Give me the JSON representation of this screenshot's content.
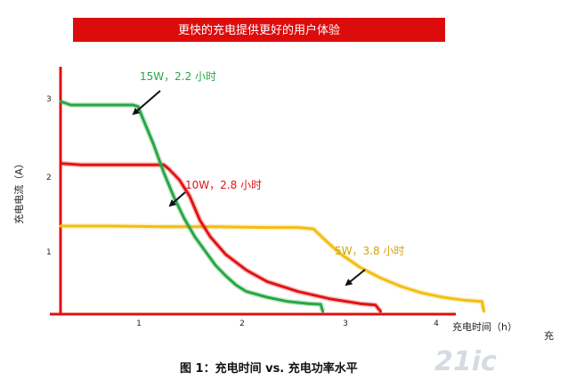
{
  "banner": {
    "text": "更快的充电提供更好的用户体验",
    "color": "#dd0c0c"
  },
  "caption": "图 1：充电时间 vs. 充电功率水平",
  "stray_label": "充",
  "watermark": "21ic",
  "chart_data": {
    "type": "line",
    "title": "",
    "xlabel": "充电时间（h）",
    "ylabel": "充电电流（A）",
    "xlim": [
      0,
      4.5
    ],
    "ylim": [
      0,
      3.2
    ],
    "xticks": [
      "1",
      "2",
      "3",
      "4"
    ],
    "yticks": [
      "1",
      "2",
      "3"
    ],
    "axis_color": "#e01010",
    "grid": false,
    "series": [
      {
        "name": "15W",
        "color": "#27a744",
        "x": [
          0.0,
          0.1,
          0.3,
          0.5,
          0.7,
          0.75,
          0.8,
          0.9,
          1.0,
          1.1,
          1.2,
          1.3,
          1.4,
          1.5,
          1.6,
          1.7,
          1.8,
          2.0,
          2.2,
          2.4,
          2.52,
          2.54
        ],
        "y": [
          2.95,
          2.9,
          2.9,
          2.9,
          2.9,
          2.88,
          2.7,
          2.35,
          1.95,
          1.6,
          1.3,
          1.05,
          0.85,
          0.65,
          0.5,
          0.37,
          0.28,
          0.2,
          0.14,
          0.11,
          0.1,
          0.0
        ]
      },
      {
        "name": "10W",
        "color": "#e01414",
        "x": [
          0.0,
          0.2,
          0.5,
          0.8,
          0.95,
          1.0,
          1.05,
          1.15,
          1.25,
          1.3,
          1.35,
          1.45,
          1.6,
          1.8,
          2.0,
          2.3,
          2.6,
          2.9,
          3.05,
          3.1
        ],
        "y": [
          2.08,
          2.06,
          2.06,
          2.06,
          2.06,
          2.06,
          2.0,
          1.85,
          1.62,
          1.45,
          1.28,
          1.05,
          0.8,
          0.58,
          0.42,
          0.28,
          0.18,
          0.11,
          0.09,
          0.0
        ]
      },
      {
        "name": "5W",
        "color": "#f2be12",
        "x": [
          0.0,
          0.5,
          1.0,
          1.5,
          2.0,
          2.3,
          2.45,
          2.55,
          2.7,
          2.9,
          3.1,
          3.3,
          3.5,
          3.7,
          3.9,
          4.08,
          4.1
        ],
        "y": [
          1.2,
          1.2,
          1.19,
          1.19,
          1.18,
          1.18,
          1.16,
          1.02,
          0.82,
          0.62,
          0.47,
          0.35,
          0.26,
          0.2,
          0.16,
          0.14,
          0.0
        ]
      }
    ],
    "annotations": [
      {
        "text": "15W，2.2 小时",
        "color": "#27a744"
      },
      {
        "text": "10W，2.8 小时",
        "color": "#e01414"
      },
      {
        "text": "5W，3.8 小时",
        "color": "#f2be12"
      }
    ]
  }
}
